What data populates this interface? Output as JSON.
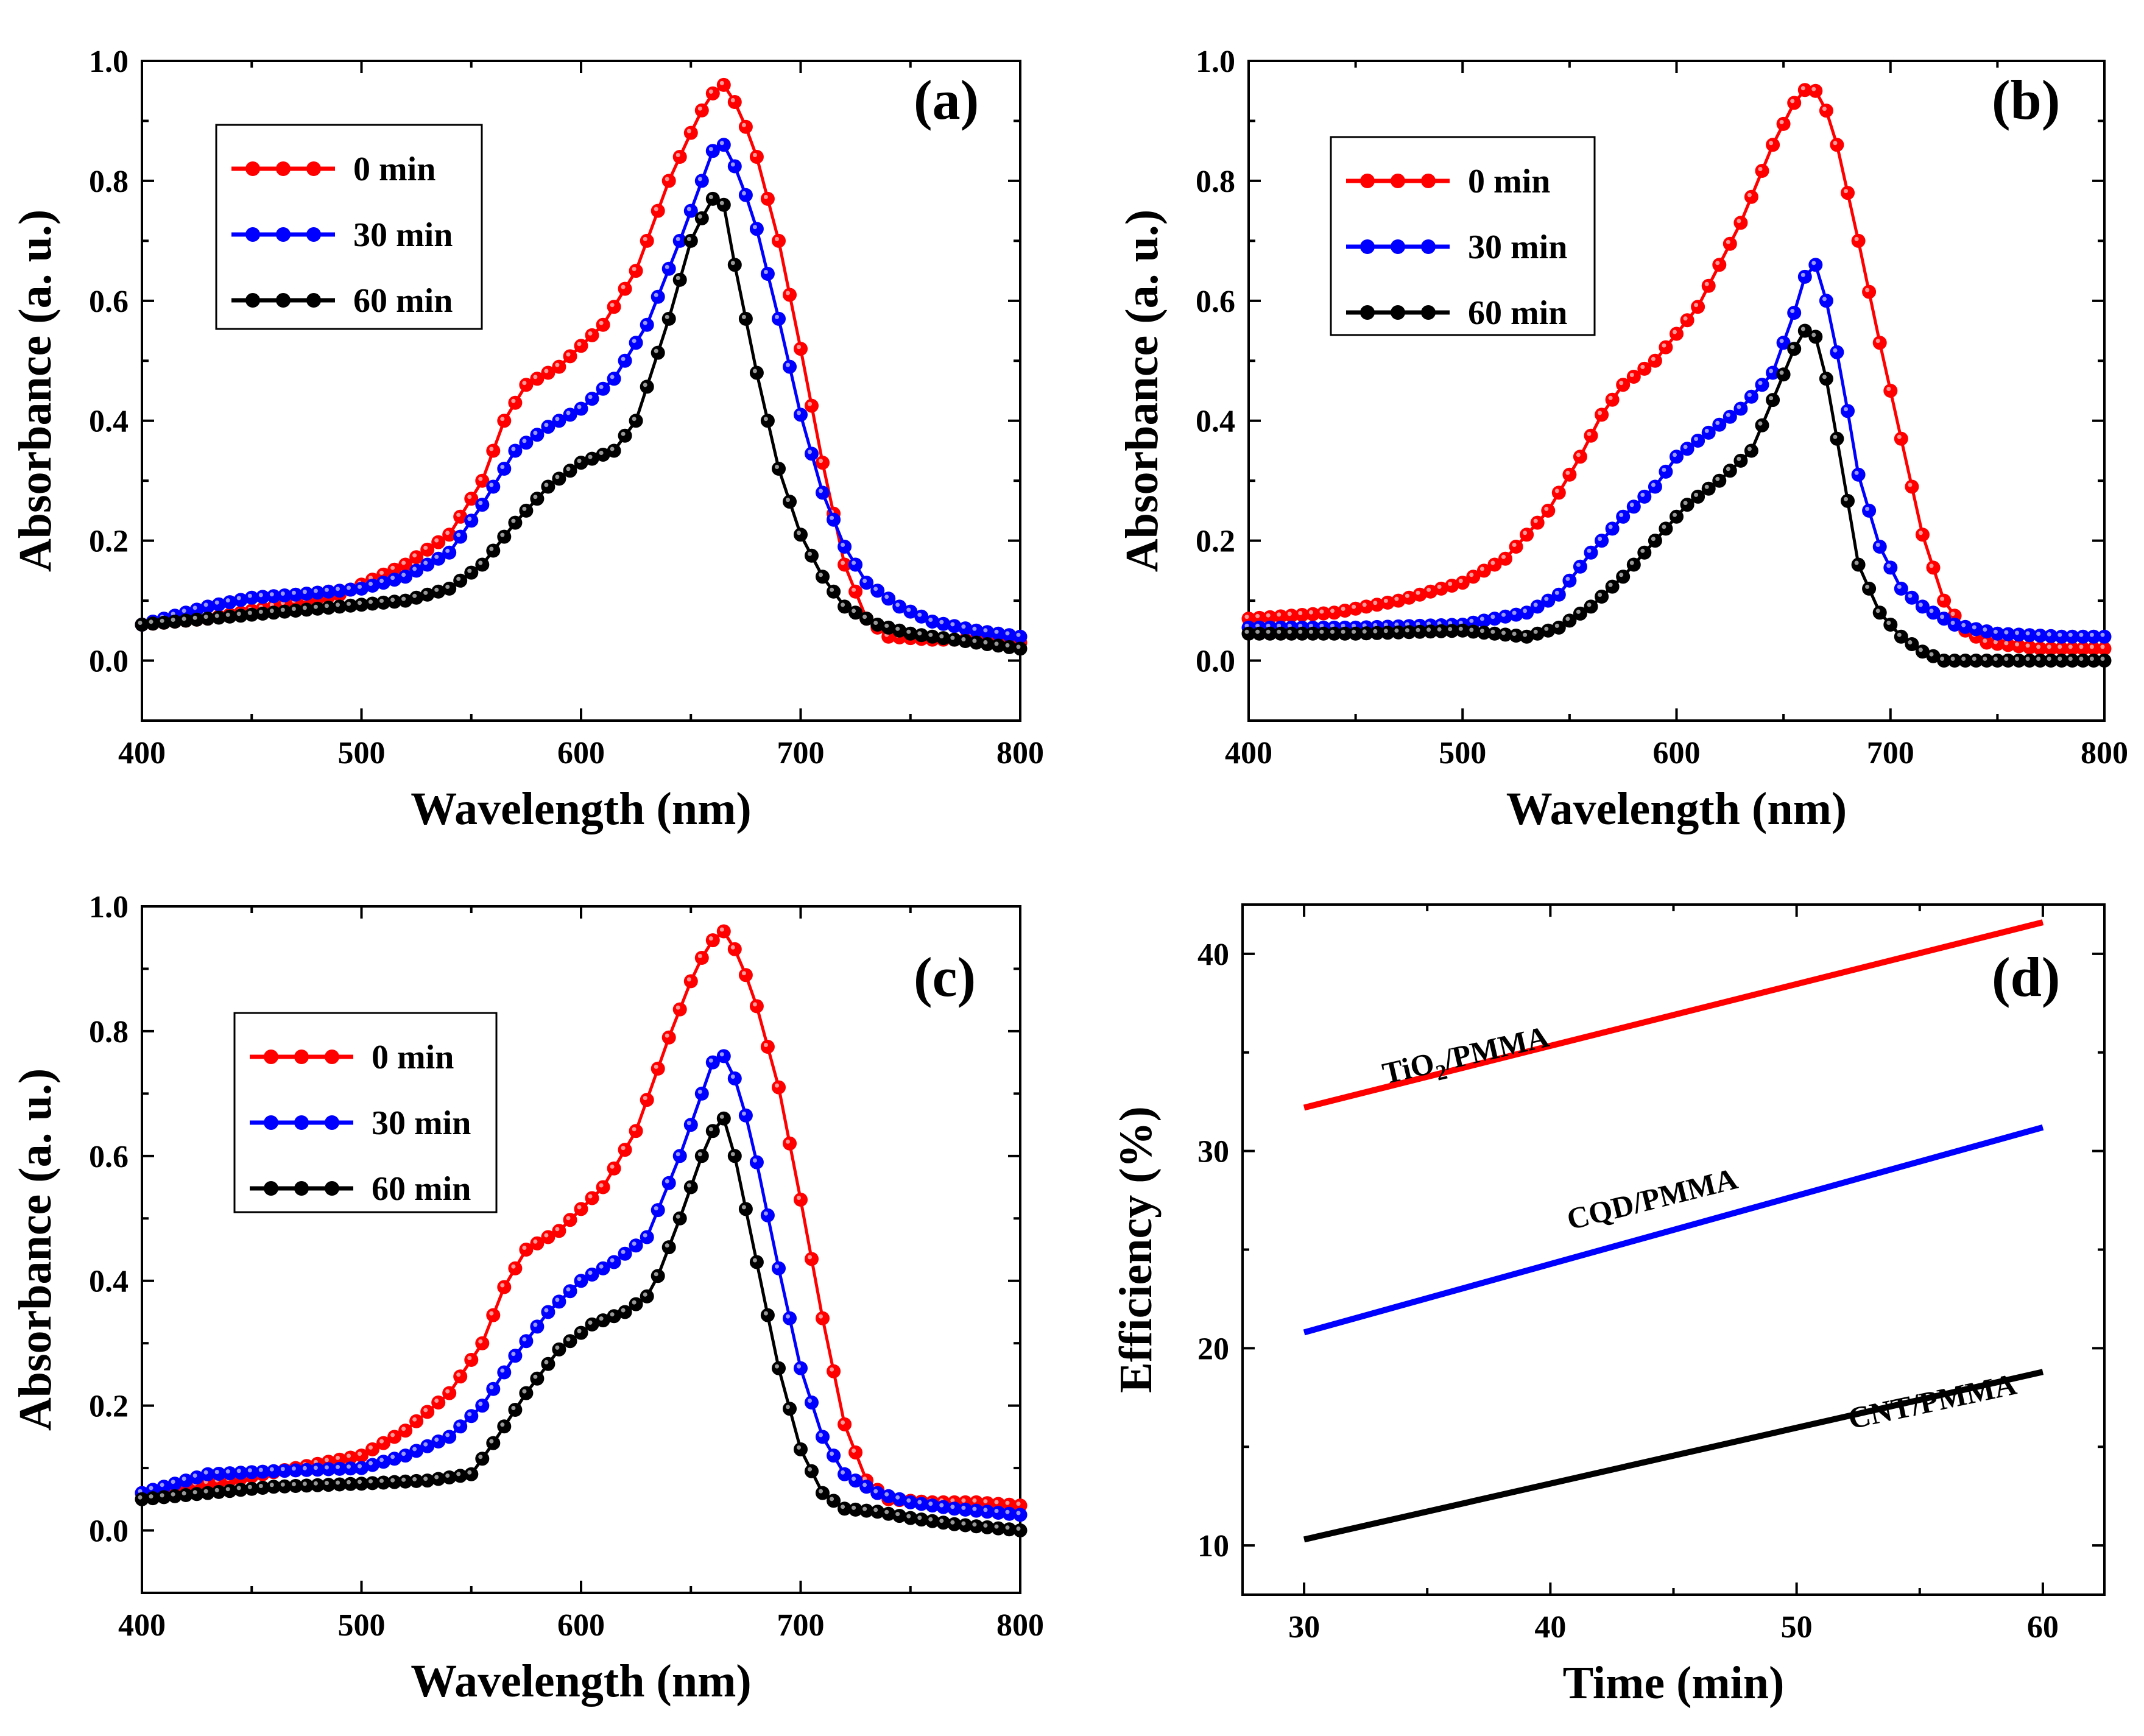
{
  "chart_data": [
    {
      "type": "scatter",
      "panel": "(a)",
      "xlabel": "Wavelength (nm)",
      "ylabel": "Absorbance (a. u.)",
      "xlim": [
        400,
        800
      ],
      "ylim": [
        -0.1,
        1.0
      ],
      "xticks": [
        400,
        500,
        600,
        700,
        800
      ],
      "yticks": [
        0.0,
        0.2,
        0.4,
        0.6,
        0.8,
        1.0
      ],
      "legend_position": "top-left",
      "series": [
        {
          "name": "0 min",
          "color": "#ff0000",
          "x": [
            400,
            430,
            460,
            490,
            520,
            540,
            555,
            565,
            575,
            590,
            610,
            625,
            640,
            650,
            658,
            665,
            672,
            680,
            690,
            700,
            710,
            720,
            730,
            740,
            760,
            780,
            800
          ],
          "y": [
            0.06,
            0.07,
            0.09,
            0.11,
            0.16,
            0.21,
            0.3,
            0.4,
            0.46,
            0.49,
            0.56,
            0.65,
            0.8,
            0.88,
            0.94,
            0.96,
            0.92,
            0.84,
            0.7,
            0.52,
            0.33,
            0.16,
            0.07,
            0.04,
            0.035,
            0.035,
            0.03
          ]
        },
        {
          "name": "30 min",
          "color": "#0000ff",
          "x": [
            400,
            430,
            450,
            470,
            500,
            520,
            540,
            555,
            570,
            585,
            600,
            615,
            630,
            645,
            655,
            660,
            665,
            672,
            680,
            690,
            700,
            710,
            720,
            730,
            745,
            760,
            780,
            800
          ],
          "y": [
            0.06,
            0.09,
            0.105,
            0.11,
            0.12,
            0.14,
            0.18,
            0.26,
            0.35,
            0.39,
            0.42,
            0.47,
            0.56,
            0.7,
            0.8,
            0.85,
            0.86,
            0.81,
            0.72,
            0.57,
            0.41,
            0.28,
            0.19,
            0.13,
            0.09,
            0.065,
            0.05,
            0.04
          ]
        },
        {
          "name": "60 min",
          "color": "#000000",
          "x": [
            400,
            430,
            460,
            490,
            520,
            540,
            555,
            570,
            585,
            600,
            615,
            625,
            640,
            650,
            658,
            662,
            665,
            670,
            680,
            690,
            700,
            710,
            720,
            735,
            750,
            770,
            800
          ],
          "y": [
            0.06,
            0.07,
            0.08,
            0.09,
            0.1,
            0.12,
            0.16,
            0.23,
            0.29,
            0.33,
            0.35,
            0.4,
            0.57,
            0.7,
            0.76,
            0.78,
            0.76,
            0.66,
            0.48,
            0.32,
            0.21,
            0.14,
            0.09,
            0.06,
            0.045,
            0.035,
            0.02
          ]
        }
      ]
    },
    {
      "type": "scatter",
      "panel": "(b)",
      "xlabel": "Wavelength (nm)",
      "ylabel": "Absorbance (a. u.)",
      "xlim": [
        400,
        800
      ],
      "ylim": [
        -0.1,
        1.0
      ],
      "xticks": [
        400,
        500,
        600,
        700,
        800
      ],
      "yticks": [
        0.0,
        0.2,
        0.4,
        0.6,
        0.8,
        1.0
      ],
      "legend_position": "top-left",
      "series": [
        {
          "name": "0 min",
          "color": "#ff0000",
          "x": [
            400,
            440,
            470,
            500,
            520,
            540,
            555,
            565,
            575,
            590,
            610,
            630,
            645,
            655,
            662,
            668,
            675,
            685,
            695,
            705,
            715,
            725,
            735,
            745,
            770,
            800
          ],
          "y": [
            0.07,
            0.08,
            0.1,
            0.13,
            0.17,
            0.25,
            0.34,
            0.41,
            0.46,
            0.5,
            0.59,
            0.73,
            0.86,
            0.93,
            0.96,
            0.94,
            0.86,
            0.7,
            0.53,
            0.37,
            0.21,
            0.1,
            0.05,
            0.03,
            0.02,
            0.02
          ]
        },
        {
          "name": "30 min",
          "color": "#0000ff",
          "x": [
            400,
            450,
            500,
            530,
            545,
            560,
            575,
            590,
            600,
            615,
            630,
            645,
            655,
            660,
            665,
            670,
            677,
            685,
            695,
            705,
            715,
            730,
            750,
            780,
            800
          ],
          "y": [
            0.055,
            0.055,
            0.06,
            0.08,
            0.11,
            0.18,
            0.24,
            0.29,
            0.34,
            0.38,
            0.42,
            0.48,
            0.58,
            0.64,
            0.66,
            0.6,
            0.48,
            0.31,
            0.19,
            0.12,
            0.09,
            0.06,
            0.045,
            0.04,
            0.04
          ]
        },
        {
          "name": "60 min",
          "color": "#000000",
          "x": [
            400,
            450,
            500,
            530,
            545,
            560,
            575,
            590,
            605,
            620,
            635,
            648,
            655,
            660,
            665,
            670,
            677,
            685,
            695,
            705,
            715,
            725,
            750,
            800
          ],
          "y": [
            0.045,
            0.045,
            0.05,
            0.04,
            0.055,
            0.09,
            0.14,
            0.2,
            0.26,
            0.3,
            0.35,
            0.46,
            0.52,
            0.55,
            0.54,
            0.47,
            0.33,
            0.16,
            0.08,
            0.04,
            0.015,
            0.0,
            0.0,
            0.0
          ]
        }
      ]
    },
    {
      "type": "scatter",
      "panel": "(c)",
      "xlabel": "Wavelength (nm)",
      "ylabel": "Absorbance (a. u.)",
      "xlim": [
        400,
        800
      ],
      "ylim": [
        -0.1,
        1.0
      ],
      "xticks": [
        400,
        500,
        600,
        700,
        800
      ],
      "yticks": [
        0.0,
        0.2,
        0.4,
        0.6,
        0.8,
        1.0
      ],
      "legend_position": "top-left",
      "series": [
        {
          "name": "0 min",
          "color": "#ff0000",
          "x": [
            400,
            440,
            470,
            500,
            520,
            540,
            555,
            565,
            575,
            590,
            610,
            625,
            640,
            650,
            658,
            665,
            672,
            680,
            690,
            700,
            710,
            720,
            730,
            740,
            760,
            780,
            800
          ],
          "y": [
            0.06,
            0.08,
            0.1,
            0.12,
            0.16,
            0.22,
            0.3,
            0.39,
            0.45,
            0.48,
            0.55,
            0.64,
            0.79,
            0.88,
            0.94,
            0.96,
            0.92,
            0.84,
            0.71,
            0.53,
            0.34,
            0.17,
            0.08,
            0.05,
            0.045,
            0.045,
            0.04
          ]
        },
        {
          "name": "30 min",
          "color": "#0000ff",
          "x": [
            400,
            430,
            460,
            500,
            520,
            540,
            555,
            570,
            585,
            600,
            615,
            630,
            645,
            655,
            660,
            665,
            672,
            680,
            690,
            700,
            710,
            720,
            735,
            750,
            770,
            800
          ],
          "y": [
            0.06,
            0.09,
            0.095,
            0.1,
            0.12,
            0.15,
            0.2,
            0.28,
            0.35,
            0.4,
            0.43,
            0.47,
            0.6,
            0.7,
            0.75,
            0.76,
            0.71,
            0.59,
            0.42,
            0.26,
            0.15,
            0.09,
            0.06,
            0.045,
            0.035,
            0.025
          ]
        },
        {
          "name": "60 min",
          "color": "#000000",
          "x": [
            400,
            430,
            460,
            500,
            530,
            550,
            560,
            575,
            590,
            605,
            620,
            632,
            645,
            655,
            660,
            665,
            670,
            680,
            690,
            700,
            710,
            720,
            735,
            750,
            770,
            800
          ],
          "y": [
            0.05,
            0.06,
            0.07,
            0.075,
            0.08,
            0.09,
            0.14,
            0.22,
            0.29,
            0.33,
            0.35,
            0.38,
            0.5,
            0.6,
            0.64,
            0.66,
            0.6,
            0.43,
            0.26,
            0.13,
            0.06,
            0.035,
            0.03,
            0.02,
            0.01,
            0.0
          ]
        }
      ]
    },
    {
      "type": "line",
      "panel": "(d)",
      "xlabel": "Time (min)",
      "ylabel": "Efficiency (%)",
      "xlim": [
        27.5,
        62.5
      ],
      "ylim": [
        7.5,
        42.5
      ],
      "xticks": [
        30,
        40,
        50,
        60
      ],
      "yticks": [
        10,
        20,
        30,
        40
      ],
      "series": [
        {
          "name": "TiO2/PMMA",
          "label_text": "TiO",
          "label_sub": "2",
          "label_rest": "/PMMA",
          "color": "#ff0000",
          "x": [
            30,
            60
          ],
          "y": [
            32.2,
            41.6
          ]
        },
        {
          "name": "CQD/PMMA",
          "label_text": "CQD/PMMA",
          "label_sub": "",
          "label_rest": "",
          "color": "#0000ff",
          "x": [
            30,
            60
          ],
          "y": [
            20.8,
            31.2
          ]
        },
        {
          "name": "CNT/PMMA",
          "label_text": "CNT/PMMA",
          "label_sub": "",
          "label_rest": "",
          "color": "#000000",
          "x": [
            30,
            60
          ],
          "y": [
            10.3,
            18.8
          ]
        }
      ]
    }
  ]
}
